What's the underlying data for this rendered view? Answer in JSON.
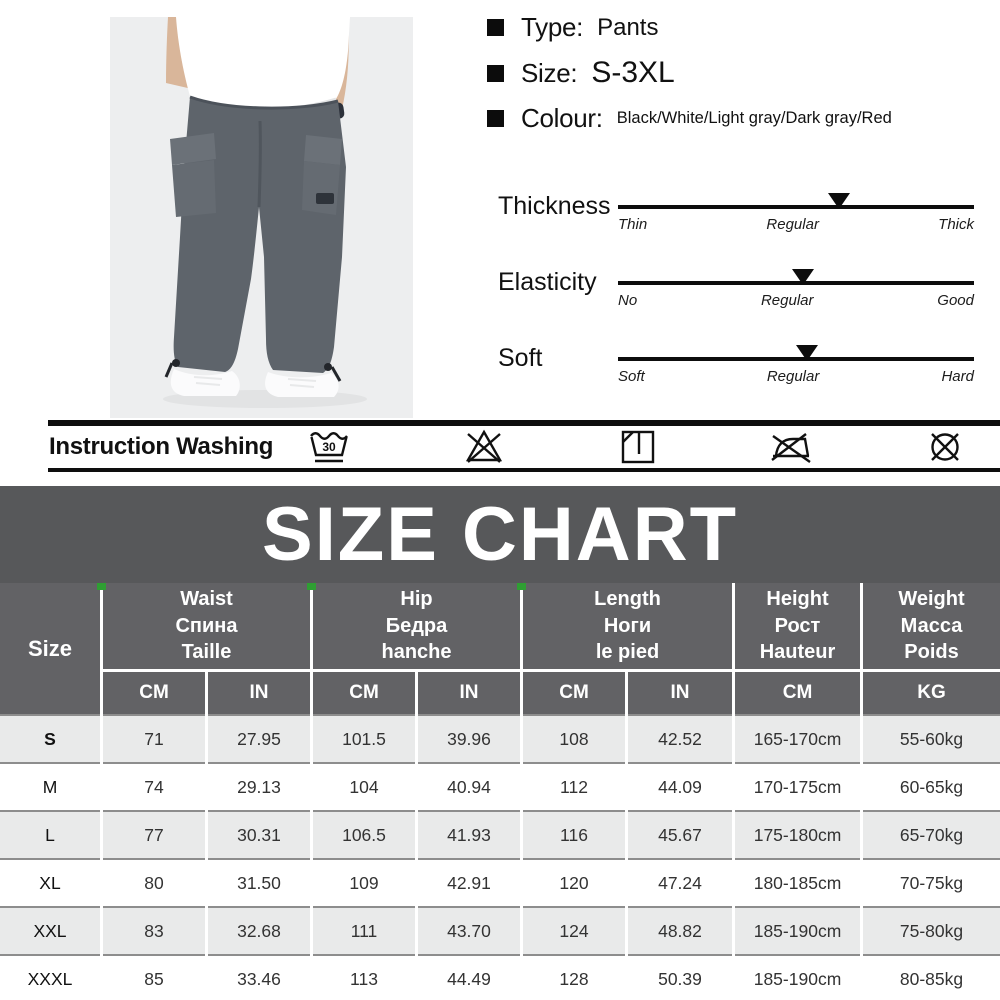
{
  "product": {
    "specs": [
      {
        "key": "type",
        "label": "Type:",
        "value": "Pants"
      },
      {
        "key": "size",
        "label": "Size:",
        "value": "S-3XL"
      },
      {
        "key": "colour",
        "label": "Colour:",
        "value": "Black/White/Light gray/Dark gray/Red"
      }
    ],
    "sliders": [
      {
        "name": "Thickness",
        "ticks": [
          "Thin",
          "Regular",
          "Thick"
        ],
        "marker_pct": 62
      },
      {
        "name": "Elasticity",
        "ticks": [
          "No",
          "Regular",
          "Good"
        ],
        "marker_pct": 52
      },
      {
        "name": "Soft",
        "ticks": [
          "Soft",
          "Regular",
          "Hard"
        ],
        "marker_pct": 53
      }
    ],
    "washing": {
      "label": "Instruction Washing",
      "wash_temp": "30",
      "icons": [
        "machine-wash-30-icon",
        "do-not-bleach-icon",
        "drip-dry-icon",
        "do-not-iron-icon",
        "do-not-dry-clean-icon"
      ]
    }
  },
  "size_chart": {
    "title": "SIZE CHART",
    "size_label": "Size",
    "header_groups": [
      {
        "en": "Waist",
        "ru": "Спина",
        "fr": "Taille",
        "units": [
          "CM",
          "IN"
        ]
      },
      {
        "en": "Hip",
        "ru": "Бедра",
        "fr": "hanche",
        "units": [
          "CM",
          "IN"
        ]
      },
      {
        "en": "Length",
        "ru": "Ноги",
        "fr": "le pied",
        "units": [
          "CM",
          "IN"
        ]
      },
      {
        "en": "Height",
        "ru": "Рост",
        "fr": "Hauteur",
        "units": [
          "CM"
        ]
      },
      {
        "en": "Weight",
        "ru": "Масса",
        "fr": "Poids",
        "units": [
          "KG"
        ]
      }
    ],
    "rows": [
      {
        "size": "S",
        "waist_cm": "71",
        "waist_in": "27.95",
        "hip_cm": "101.5",
        "hip_in": "39.96",
        "length_cm": "108",
        "length_in": "42.52",
        "height": "165-170cm",
        "weight": "55-60kg"
      },
      {
        "size": "M",
        "waist_cm": "74",
        "waist_in": "29.13",
        "hip_cm": "104",
        "hip_in": "40.94",
        "length_cm": "112",
        "length_in": "44.09",
        "height": "170-175cm",
        "weight": "60-65kg"
      },
      {
        "size": "L",
        "waist_cm": "77",
        "waist_in": "30.31",
        "hip_cm": "106.5",
        "hip_in": "41.93",
        "length_cm": "116",
        "length_in": "45.67",
        "height": "175-180cm",
        "weight": "65-70kg"
      },
      {
        "size": "XL",
        "waist_cm": "80",
        "waist_in": "31.50",
        "hip_cm": "109",
        "hip_in": "42.91",
        "length_cm": "120",
        "length_in": "47.24",
        "height": "180-185cm",
        "weight": "70-75kg"
      },
      {
        "size": "XXL",
        "waist_cm": "83",
        "waist_in": "32.68",
        "hip_cm": "111",
        "hip_in": "43.70",
        "length_cm": "124",
        "length_in": "48.82",
        "height": "185-190cm",
        "weight": "75-80kg"
      },
      {
        "size": "XXXL",
        "waist_cm": "85",
        "waist_in": "33.46",
        "hip_cm": "113",
        "hip_in": "44.49",
        "length_cm": "128",
        "length_in": "50.39",
        "height": "185-190cm",
        "weight": "80-85kg"
      }
    ]
  },
  "colors": {
    "banner_bg": "#57585a",
    "header_bg": "#626265",
    "row_alt": "#e9eaea",
    "row_separator": "#8d8d8d",
    "green_tick": "#2f9e33",
    "photo_bg": "#edeeef",
    "pants_gray": "#5e646b"
  }
}
